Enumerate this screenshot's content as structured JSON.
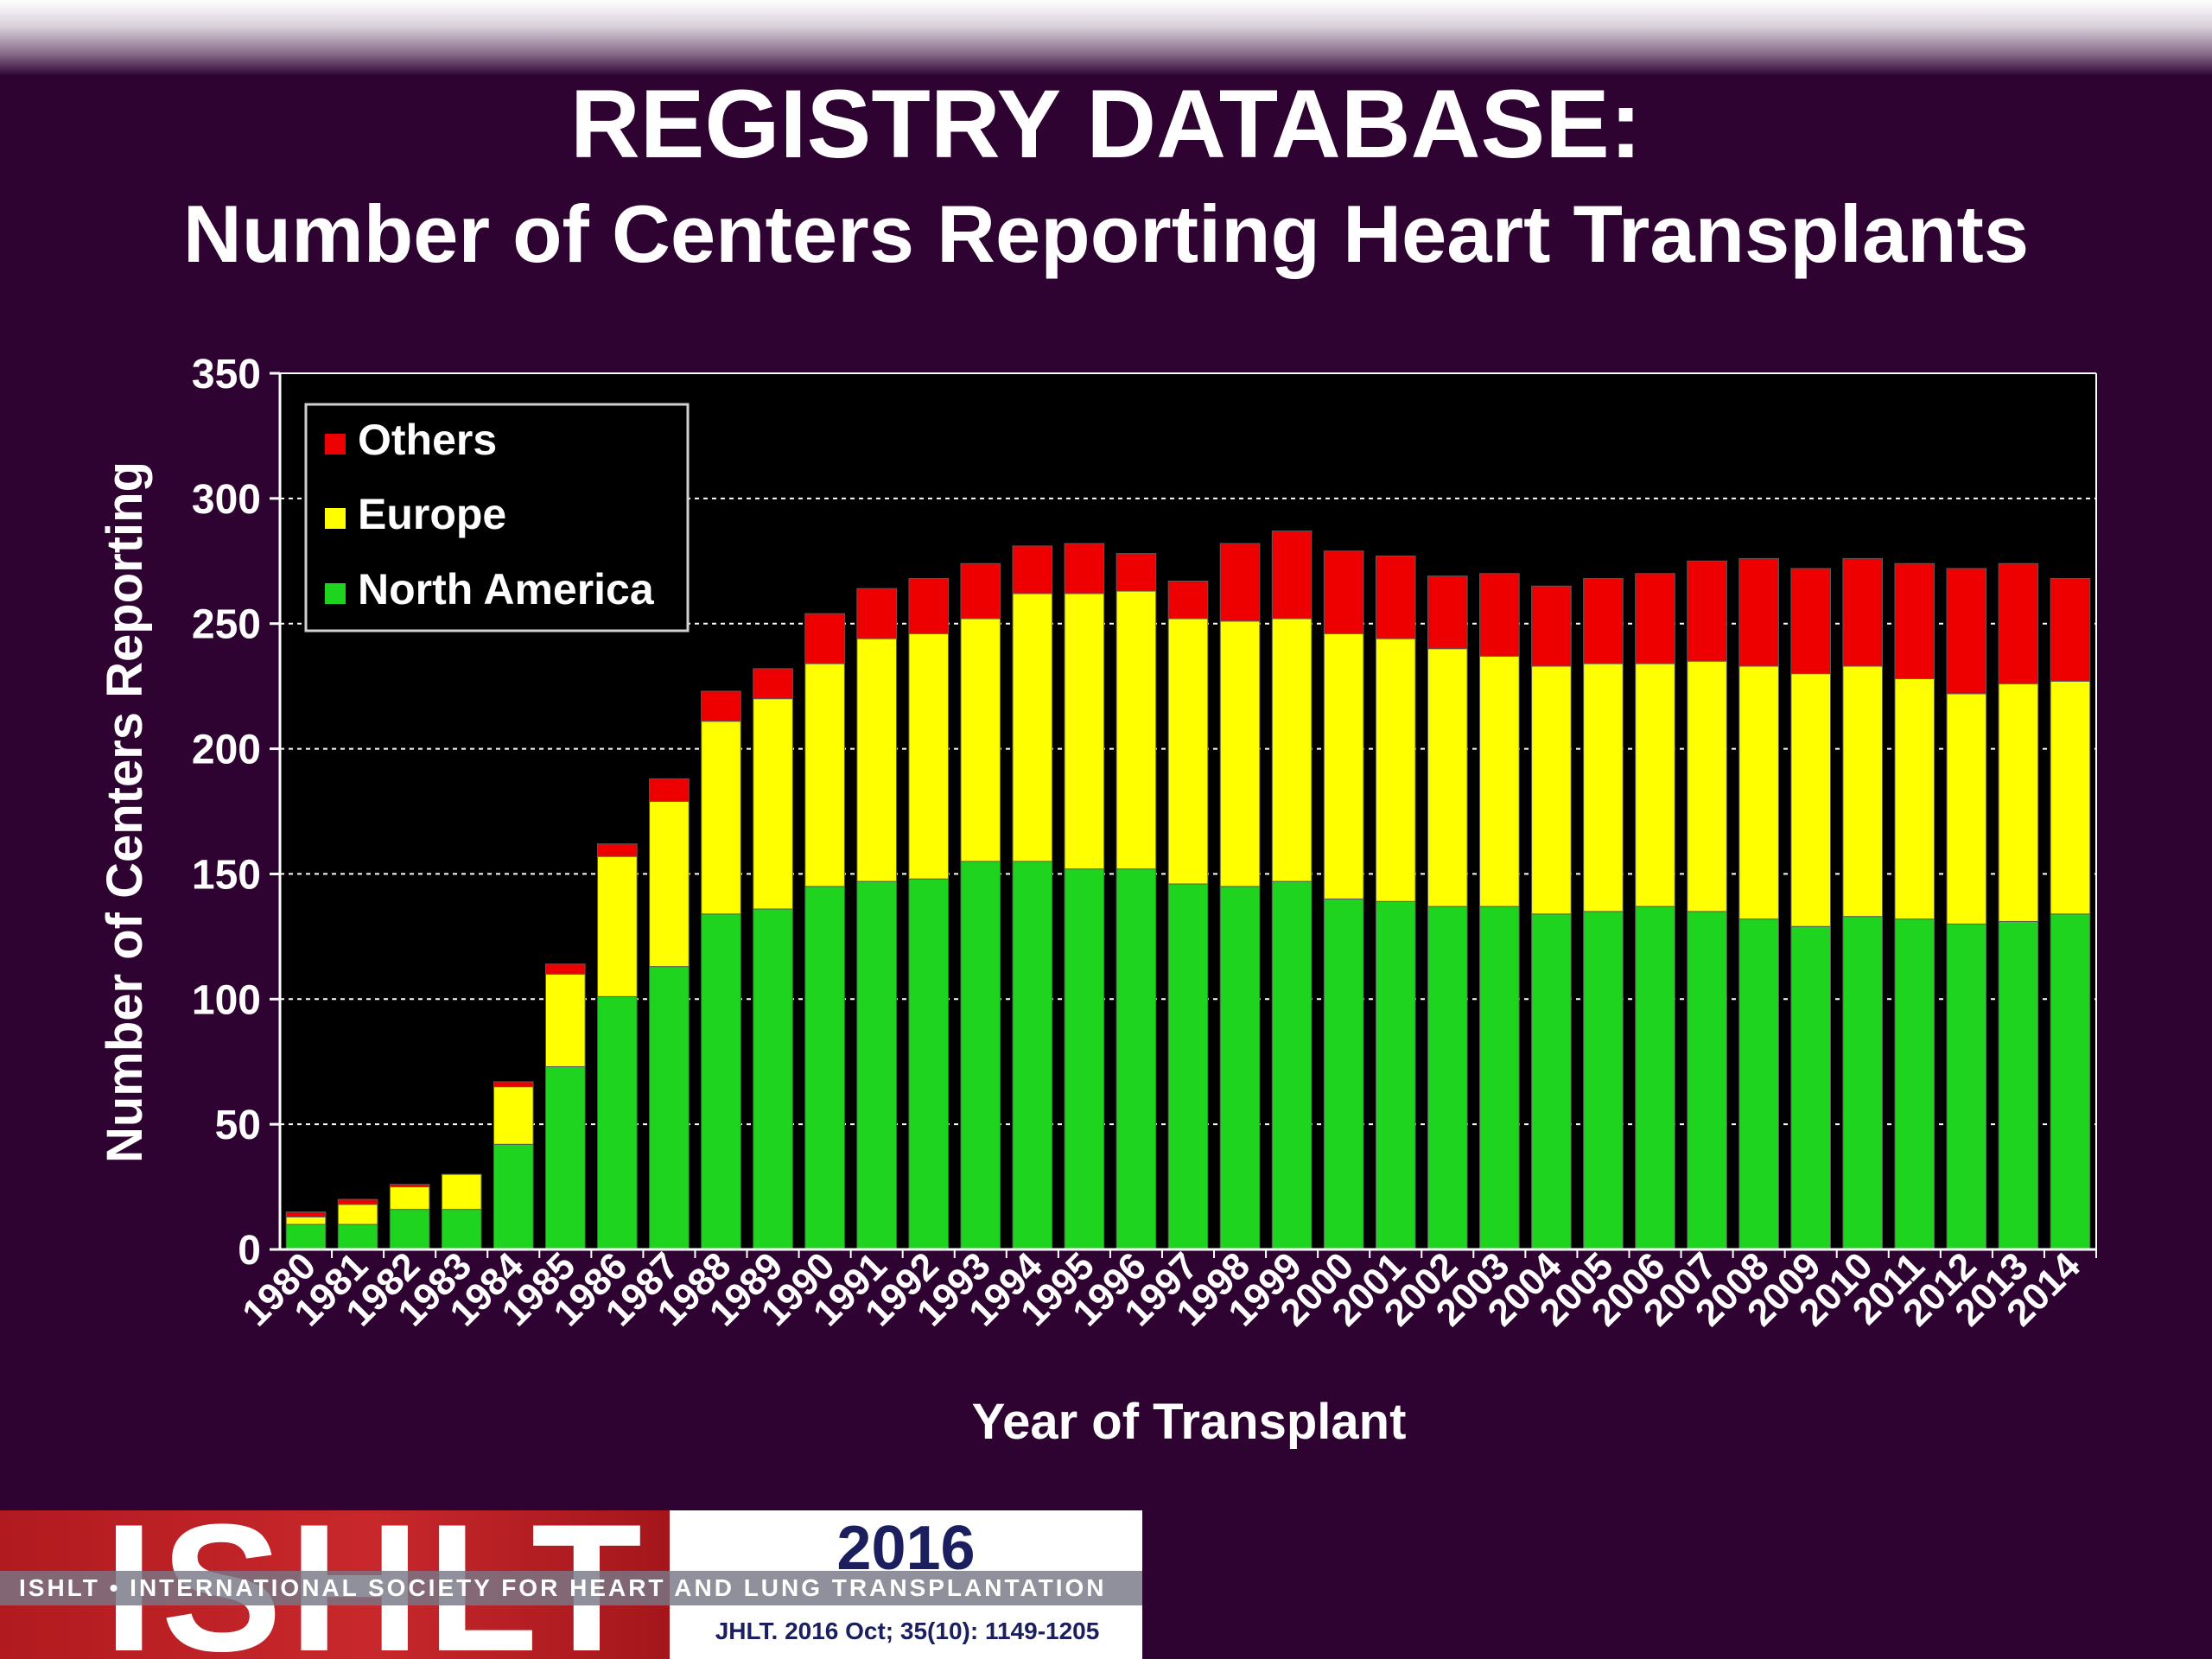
{
  "slide": {
    "title": "REGISTRY DATABASE:",
    "subtitle": "Number of Centers Reporting Heart Transplants"
  },
  "footer": {
    "logo_text": "ISHLT",
    "year": "2016",
    "society": "ISHLT • INTERNATIONAL SOCIETY FOR HEART AND LUNG TRANSPLANTATION",
    "citation": "JHLT. 2016 Oct; 35(10): 1149-1205"
  },
  "colors": {
    "background": "#2e0332",
    "plot_background": "#000000",
    "north_america": "#1fd41f",
    "europe": "#ffff00",
    "others": "#ee0000"
  },
  "chart_data": {
    "type": "bar",
    "stacked": true,
    "title": "",
    "xlabel": "Year of Transplant",
    "ylabel": "Number of Centers Reporting",
    "ylim": [
      0,
      350
    ],
    "yticks": [
      0,
      50,
      100,
      150,
      200,
      250,
      300,
      350
    ],
    "grid": true,
    "legend_position": "top-left",
    "categories": [
      "1980",
      "1981",
      "1982",
      "1983",
      "1984",
      "1985",
      "1986",
      "1987",
      "1988",
      "1989",
      "1990",
      "1991",
      "1992",
      "1993",
      "1994",
      "1995",
      "1996",
      "1997",
      "1998",
      "1999",
      "2000",
      "2001",
      "2002",
      "2003",
      "2004",
      "2005",
      "2006",
      "2007",
      "2008",
      "2009",
      "2010",
      "2011",
      "2012",
      "2013",
      "2014"
    ],
    "series": [
      {
        "name": "North America",
        "color": "#1fd41f",
        "values": [
          10,
          10,
          16,
          16,
          42,
          73,
          101,
          113,
          134,
          136,
          145,
          147,
          148,
          155,
          155,
          152,
          152,
          146,
          145,
          147,
          140,
          139,
          137,
          137,
          134,
          135,
          137,
          135,
          132,
          129,
          133,
          132,
          130,
          131,
          134
        ]
      },
      {
        "name": "Europe",
        "color": "#ffff00",
        "values": [
          3,
          8,
          9,
          14,
          23,
          37,
          56,
          66,
          77,
          84,
          89,
          97,
          98,
          97,
          107,
          110,
          111,
          106,
          106,
          105,
          106,
          105,
          103,
          100,
          99,
          99,
          97,
          100,
          101,
          101,
          100,
          96,
          92,
          95,
          93
        ]
      },
      {
        "name": "Others",
        "color": "#ee0000",
        "values": [
          2,
          2,
          1,
          0,
          2,
          4,
          5,
          9,
          12,
          12,
          20,
          20,
          22,
          22,
          19,
          20,
          15,
          15,
          31,
          35,
          33,
          33,
          29,
          33,
          32,
          34,
          36,
          40,
          43,
          42,
          43,
          46,
          50,
          48,
          41
        ]
      }
    ],
    "legend": [
      "Others",
      "Europe",
      "North America"
    ]
  }
}
